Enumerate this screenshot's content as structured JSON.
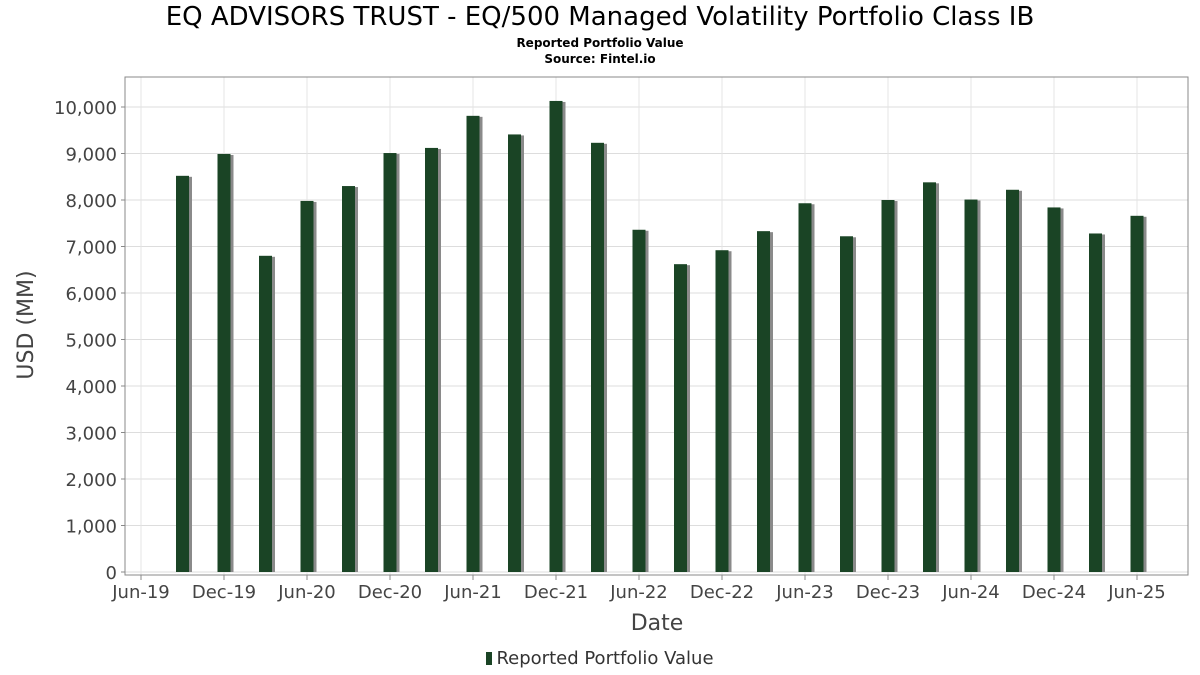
{
  "chart_data": {
    "type": "bar",
    "title": "EQ ADVISORS TRUST - EQ/500 Managed Volatility Portfolio Class IB",
    "subtitle": "Reported Portfolio Value",
    "source": "Source: Fintel.io",
    "xlabel": "Date",
    "ylabel": "USD (MM)",
    "ylim": [
      0,
      10500
    ],
    "yticks": [
      0,
      1000,
      2000,
      3000,
      4000,
      5000,
      6000,
      7000,
      8000,
      9000,
      10000
    ],
    "ytick_labels": [
      "0",
      "1,000",
      "2,000",
      "3,000",
      "4,000",
      "5,000",
      "6,000",
      "7,000",
      "8,000",
      "9,000",
      "10,000"
    ],
    "xticks": [
      "Jun-19",
      "Dec-19",
      "Jun-20",
      "Dec-20",
      "Jun-21",
      "Dec-21",
      "Jun-22",
      "Dec-22",
      "Jun-23",
      "Dec-23",
      "Jun-24",
      "Dec-24",
      "Jun-25"
    ],
    "categories": [
      "Sep-19",
      "Dec-19",
      "Mar-20",
      "Jun-20",
      "Sep-20",
      "Dec-20",
      "Mar-21",
      "Jun-21",
      "Sep-21",
      "Dec-21",
      "Mar-22",
      "Jun-22",
      "Sep-22",
      "Dec-22",
      "Mar-23",
      "Jun-23",
      "Sep-23",
      "Dec-23",
      "Mar-24",
      "Jun-24",
      "Sep-24",
      "Dec-24",
      "Mar-25",
      "Jun-25"
    ],
    "series": [
      {
        "name": "Reported Portfolio Value",
        "color": "#1a4425",
        "values": [
          8520,
          8990,
          6800,
          7980,
          8300,
          9010,
          9120,
          9810,
          9410,
          10130,
          9230,
          7360,
          6620,
          6920,
          7330,
          7930,
          7220,
          8000,
          8380,
          8010,
          8220,
          7840,
          7280,
          7660
        ]
      }
    ],
    "grid": true,
    "legend_position": "bottom-center"
  }
}
